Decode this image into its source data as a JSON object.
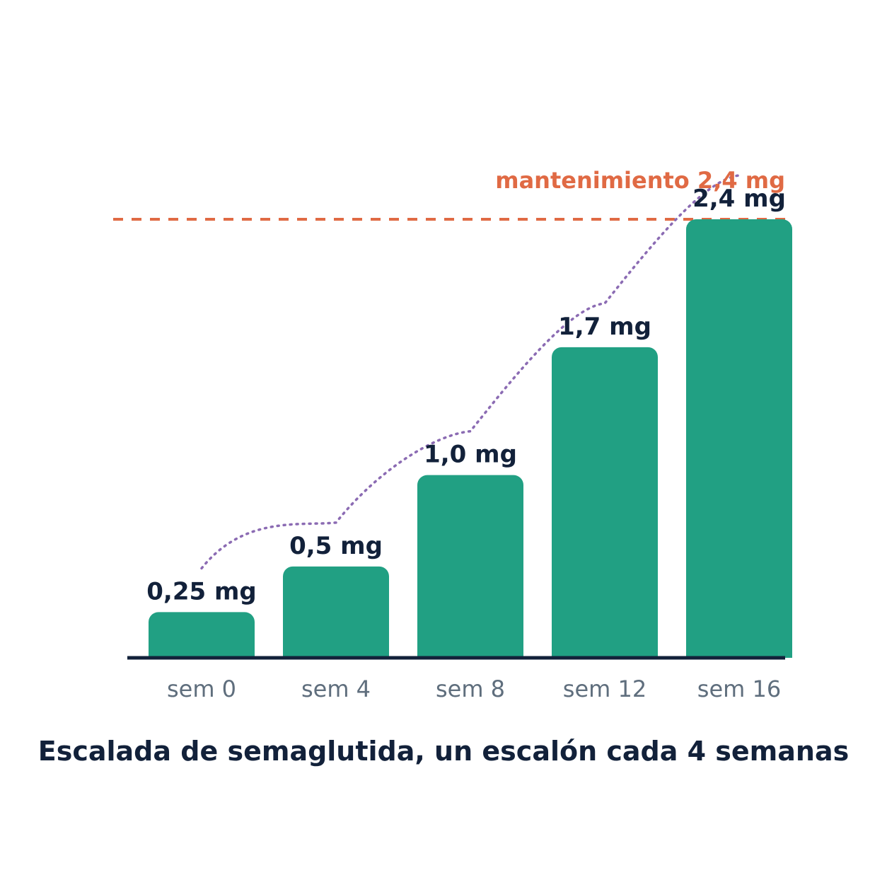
{
  "chart_data": {
    "type": "bar",
    "title": "Escalada de semaglutida, un escalón cada 4 semanas",
    "categories": [
      "sem 0",
      "sem 4",
      "sem 8",
      "sem 12",
      "sem 16"
    ],
    "values": [
      0.25,
      0.5,
      1.0,
      1.7,
      2.4
    ],
    "value_labels": [
      "0,25 mg",
      "0,5 mg",
      "1,0 mg",
      "1,7 mg",
      "2,4 mg"
    ],
    "xlabel": "",
    "ylabel": "",
    "ylim": [
      0,
      2.4
    ],
    "grid": false,
    "legend": "none",
    "reference_line": {
      "value": 2.4,
      "label": "mantenimiento 2,4 mg",
      "style": "dashed"
    },
    "trend_line": {
      "style": "dotted",
      "follows": "bar tops"
    }
  },
  "colors": {
    "bar": "#21a083",
    "axis": "#12213a",
    "value_label": "#12213a",
    "tick_label": "#5f6e7d",
    "reference_line": "#e06a44",
    "trend_line": "#8b6bb3",
    "title": "#12213a"
  }
}
